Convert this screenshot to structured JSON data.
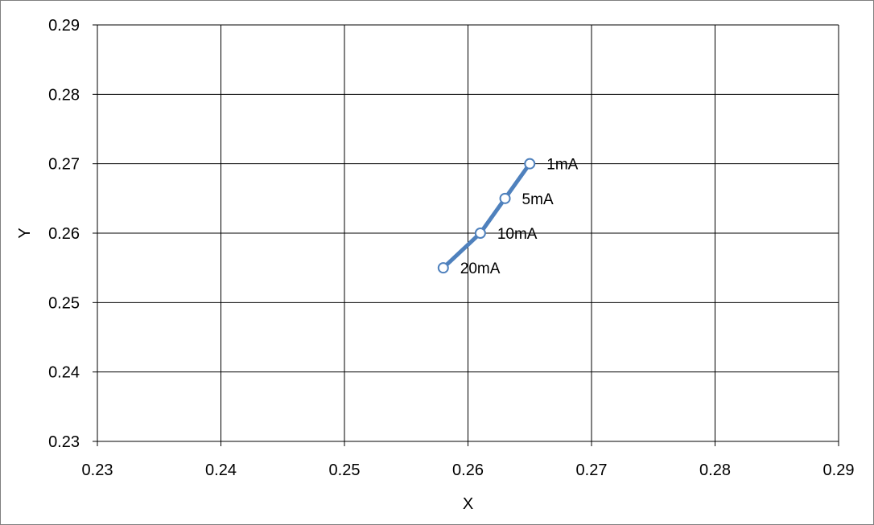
{
  "chart_data": {
    "type": "line",
    "title": "",
    "xlabel": "X",
    "ylabel": "Y",
    "xlim": [
      0.23,
      0.29
    ],
    "ylim": [
      0.23,
      0.29
    ],
    "x_ticks": [
      "0.23",
      "0.24",
      "0.25",
      "0.26",
      "0.27",
      "0.28",
      "0.29"
    ],
    "y_ticks": [
      "0.23",
      "0.24",
      "0.25",
      "0.26",
      "0.27",
      "0.28",
      "0.29"
    ],
    "grid": true,
    "legend": "none",
    "series": [
      {
        "color": "#4f81bd",
        "marker": "hollow-circle",
        "points": [
          {
            "x": 0.265,
            "y": 0.27,
            "label": "1mA"
          },
          {
            "x": 0.263,
            "y": 0.265,
            "label": "5mA"
          },
          {
            "x": 0.261,
            "y": 0.26,
            "label": "10mA"
          },
          {
            "x": 0.258,
            "y": 0.255,
            "label": "20mA"
          }
        ]
      }
    ]
  }
}
